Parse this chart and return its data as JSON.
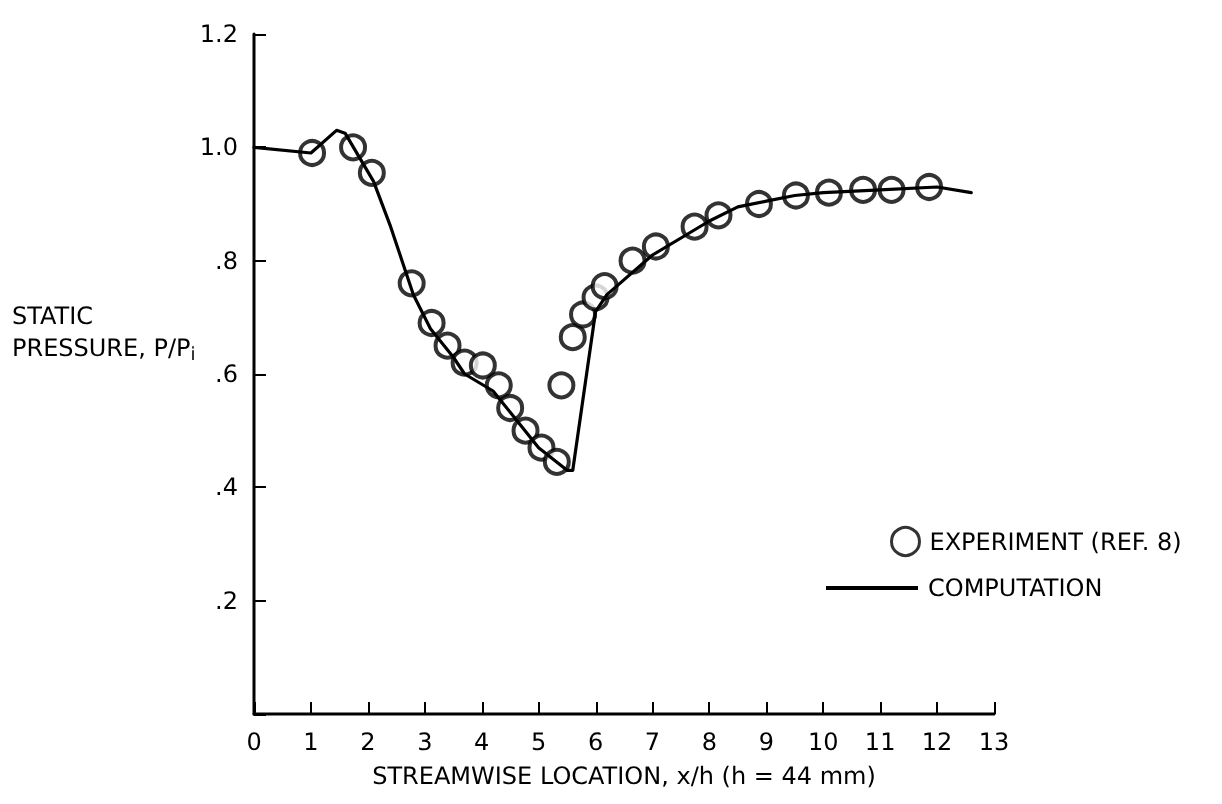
{
  "chart_data": {
    "type": "line",
    "xlabel": "STREAMWISE LOCATION, x/h (h = 44 mm)",
    "ylabel": "STATIC PRESSURE, P/P$_{i}$",
    "xlim": [
      0,
      13
    ],
    "xticks": [
      0,
      1,
      2,
      3,
      4,
      5,
      6,
      7,
      8,
      9,
      10,
      11,
      12,
      13
    ],
    "ylim": [
      0,
      1.2
    ],
    "yticks": [
      {
        "value": 0,
        "label": null
      },
      {
        "value": 0.2,
        "label": ".2"
      },
      {
        "value": 0.4,
        "label": ".4"
      },
      {
        "value": 0.6,
        "label": ".6"
      },
      {
        "value": 0.8,
        "label": ".8"
      },
      {
        "value": 1.0,
        "label": "1.0"
      },
      {
        "value": 1.2,
        "label": "1.2"
      }
    ],
    "grid": false,
    "legend": "right",
    "series": [
      {
        "name": "EXPERIMENT (REF. 8)",
        "type": "scatter",
        "marker": "circle",
        "color": "#000000",
        "x": [
          1.02,
          1.74,
          2.07,
          2.77,
          3.12,
          3.4,
          3.7,
          4.02,
          4.3,
          4.5,
          4.77,
          5.05,
          5.32,
          5.4,
          5.6,
          5.78,
          6.0,
          6.16,
          6.65,
          7.06,
          7.74,
          8.16,
          8.87,
          9.52,
          10.1,
          10.7,
          11.2,
          11.86
        ],
        "values": [
          0.99,
          1.0,
          0.955,
          0.76,
          0.69,
          0.65,
          0.62,
          0.615,
          0.58,
          0.54,
          0.5,
          0.47,
          0.445,
          0.58,
          0.665,
          0.705,
          0.735,
          0.755,
          0.8,
          0.825,
          0.86,
          0.88,
          0.9,
          0.915,
          0.92,
          0.925,
          0.925,
          0.93
        ]
      },
      {
        "name": "COMPUTATION",
        "type": "line",
        "marker": "none",
        "line_style": "solid",
        "color": "#000000",
        "x": [
          0,
          1,
          1.45,
          1.6,
          2.1,
          2.4,
          2.6,
          2.8,
          3.1,
          3.5,
          3.7,
          4.2,
          4.6,
          5.0,
          5.5,
          5.6,
          6.0,
          6.2,
          7.0,
          8.0,
          8.5,
          9,
          9.5,
          10,
          11,
          12,
          12.6
        ],
        "values": [
          1.0,
          0.99,
          1.03,
          1.025,
          0.94,
          0.86,
          0.8,
          0.74,
          0.68,
          0.63,
          0.6,
          0.57,
          0.52,
          0.47,
          0.43,
          0.43,
          0.71,
          0.74,
          0.81,
          0.87,
          0.895,
          0.905,
          0.915,
          0.92,
          0.925,
          0.93,
          0.92
        ]
      }
    ]
  }
}
